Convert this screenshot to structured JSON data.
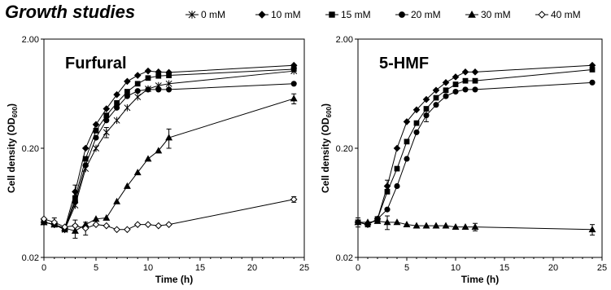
{
  "figure_title": "Growth studies",
  "legend": [
    {
      "name": "0 mM",
      "marker": "asterisk"
    },
    {
      "name": "10 mM",
      "marker": "diamond"
    },
    {
      "name": "15 mM",
      "marker": "square"
    },
    {
      "name": "20 mM",
      "marker": "circle"
    },
    {
      "name": "30 mM",
      "marker": "triangle"
    },
    {
      "name": "40 mM",
      "marker": "open-diamond"
    }
  ],
  "chart_data": [
    {
      "type": "line",
      "title": "Furfural",
      "xlabel": "Time (h)",
      "ylabel": "Cell density (OD",
      "ylabel_sub": "600",
      "ylabel_close": ")",
      "xlim": [
        0,
        25
      ],
      "ylim": [
        0.02,
        2.0
      ],
      "yscale": "log",
      "xticks": [
        "0",
        "5",
        "10",
        "15",
        "20",
        "25"
      ],
      "yticks": [
        "0.02",
        "0.20",
        "2.00"
      ],
      "grid": false,
      "series": [
        {
          "name": "0 mM",
          "x": [
            0,
            1,
            2,
            3,
            4,
            5,
            6,
            7,
            8,
            9,
            10,
            11,
            12,
            24
          ],
          "y": [
            0.042,
            0.04,
            0.036,
            0.06,
            0.13,
            0.2,
            0.28,
            0.36,
            0.47,
            0.59,
            0.7,
            0.75,
            0.78,
            1.02
          ]
        },
        {
          "name": "10 mM",
          "x": [
            0,
            1,
            2,
            3,
            4,
            5,
            6,
            7,
            8,
            9,
            10,
            11,
            12,
            24
          ],
          "y": [
            0.042,
            0.04,
            0.037,
            0.08,
            0.2,
            0.33,
            0.46,
            0.62,
            0.82,
            0.93,
            1.02,
            1.0,
            0.99,
            1.15
          ]
        },
        {
          "name": "15 mM",
          "x": [
            0,
            1,
            2,
            3,
            4,
            5,
            6,
            7,
            8,
            9,
            10,
            11,
            12,
            24
          ],
          "y": [
            0.042,
            0.04,
            0.036,
            0.07,
            0.16,
            0.29,
            0.4,
            0.52,
            0.66,
            0.78,
            0.88,
            0.92,
            0.93,
            1.06
          ]
        },
        {
          "name": "20 mM",
          "x": [
            0,
            1,
            2,
            3,
            4,
            5,
            6,
            7,
            8,
            9,
            10,
            11,
            12,
            24
          ],
          "y": [
            0.042,
            0.04,
            0.036,
            0.065,
            0.14,
            0.25,
            0.36,
            0.47,
            0.6,
            0.67,
            0.69,
            0.69,
            0.69,
            0.78
          ]
        },
        {
          "name": "30 mM",
          "x": [
            0,
            1,
            2,
            3,
            4,
            5,
            6,
            7,
            8,
            9,
            10,
            11,
            12,
            24
          ],
          "y": [
            0.042,
            0.04,
            0.037,
            0.035,
            0.04,
            0.045,
            0.046,
            0.065,
            0.09,
            0.12,
            0.16,
            0.19,
            0.25,
            0.57
          ]
        },
        {
          "name": "40 mM",
          "x": [
            0,
            1,
            2,
            3,
            4,
            5,
            6,
            7,
            8,
            9,
            10,
            11,
            12,
            24
          ],
          "y": [
            0.045,
            0.042,
            0.038,
            0.039,
            0.037,
            0.04,
            0.039,
            0.036,
            0.036,
            0.04,
            0.04,
            0.039,
            0.04,
            0.068
          ]
        }
      ],
      "error_bars": [
        {
          "series": "10 mM",
          "x": 3,
          "y": 0.08,
          "err": 0.012
        },
        {
          "series": "0 mM",
          "x": 6,
          "y": 0.28,
          "err": 0.03
        },
        {
          "series": "30 mM",
          "x": 3,
          "y": 0.035,
          "err": 0.005
        },
        {
          "series": "30 mM",
          "x": 12,
          "y": 0.25,
          "err": 0.05
        },
        {
          "series": "30 mM",
          "x": 24,
          "y": 0.57,
          "err": 0.06
        },
        {
          "series": "40 mM",
          "x": 1,
          "y": 0.042,
          "err": 0.004
        },
        {
          "series": "40 mM",
          "x": 3,
          "y": 0.039,
          "err": 0.005
        },
        {
          "series": "40 mM",
          "x": 4,
          "y": 0.037,
          "err": 0.005
        },
        {
          "series": "40 mM",
          "x": 24,
          "y": 0.068,
          "err": 0.004
        }
      ]
    },
    {
      "type": "line",
      "title": "5-HMF",
      "xlabel": "Time (h)",
      "ylabel": "Cell density (OD",
      "ylabel_sub": "600",
      "ylabel_close": ")",
      "xlim": [
        0,
        25
      ],
      "ylim": [
        0.02,
        2.0
      ],
      "yscale": "log",
      "xticks": [
        "0",
        "5",
        "10",
        "15",
        "20",
        "25"
      ],
      "yticks": [
        "0.02",
        "0.20",
        "2.00"
      ],
      "grid": false,
      "series": [
        {
          "name": "10 mM",
          "x": [
            0,
            1,
            2,
            3,
            4,
            5,
            6,
            7,
            8,
            9,
            10,
            11,
            12,
            24
          ],
          "y": [
            0.042,
            0.04,
            0.045,
            0.09,
            0.2,
            0.35,
            0.45,
            0.56,
            0.68,
            0.8,
            0.9,
            1.0,
            1.0,
            1.15
          ]
        },
        {
          "name": "15 mM",
          "x": [
            0,
            1,
            2,
            3,
            4,
            5,
            6,
            7,
            8,
            9,
            10,
            11,
            12,
            24
          ],
          "y": [
            0.042,
            0.04,
            0.045,
            0.08,
            0.13,
            0.23,
            0.34,
            0.46,
            0.58,
            0.68,
            0.77,
            0.83,
            0.83,
            1.05
          ]
        },
        {
          "name": "20 mM",
          "x": [
            0,
            1,
            2,
            3,
            4,
            5,
            6,
            7,
            8,
            9,
            10,
            11,
            12,
            24
          ],
          "y": [
            0.042,
            0.04,
            0.045,
            0.055,
            0.09,
            0.16,
            0.28,
            0.4,
            0.5,
            0.6,
            0.66,
            0.69,
            0.69,
            0.8
          ]
        },
        {
          "name": "30 mM",
          "x": [
            0,
            1,
            2,
            3,
            4,
            5,
            6,
            7,
            8,
            9,
            10,
            11,
            12,
            24
          ],
          "y": [
            0.042,
            0.042,
            0.043,
            0.042,
            0.042,
            0.04,
            0.039,
            0.039,
            0.039,
            0.039,
            0.038,
            0.038,
            0.038,
            0.036
          ]
        }
      ],
      "error_bars": [
        {
          "series": "10 mM",
          "x": 3,
          "y": 0.09,
          "err": 0.012
        },
        {
          "series": "20 mM",
          "x": 7,
          "y": 0.4,
          "err": 0.05
        },
        {
          "series": "30 mM",
          "x": 0,
          "y": 0.042,
          "err": 0.004
        },
        {
          "series": "30 mM",
          "x": 3,
          "y": 0.042,
          "err": 0.006
        },
        {
          "series": "30 mM",
          "x": 12,
          "y": 0.038,
          "err": 0.003
        },
        {
          "series": "30 mM",
          "x": 24,
          "y": 0.036,
          "err": 0.004
        }
      ]
    }
  ]
}
